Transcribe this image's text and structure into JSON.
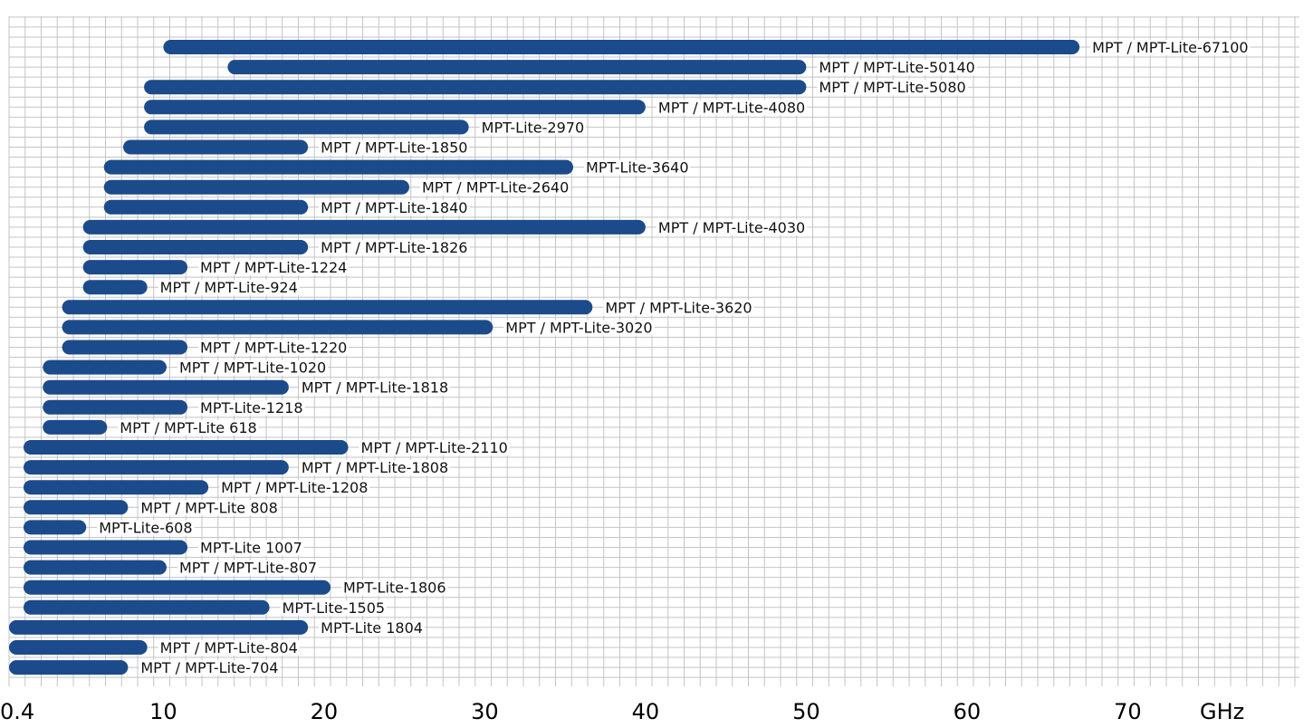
{
  "chart_data": {
    "type": "bar",
    "orientation": "horizontal",
    "unit": "GHz",
    "xlim": [
      0.4,
      80.7
    ],
    "x_ticks": [
      0.4,
      10,
      20,
      30,
      40,
      50,
      60,
      70
    ],
    "x_tick_labels": [
      "0.4",
      "10",
      "20",
      "30",
      "40",
      "50",
      "60",
      "70"
    ],
    "grid": true,
    "colors": {
      "bar": "#1c4b8c",
      "grid": "#c4c4c4",
      "label_bg": "#ffffff"
    },
    "series": [
      {
        "label": "MPT / MPT-Lite-67100",
        "start": 10,
        "end": 67
      },
      {
        "label": "MPT / MPT-Lite-50140",
        "start": 14,
        "end": 50
      },
      {
        "label": "MPT / MPT-Lite-5080",
        "start": 8.8,
        "end": 50
      },
      {
        "label": "MPT / MPT-Lite-4080",
        "start": 8.8,
        "end": 40
      },
      {
        "label": "MPT-Lite-2970",
        "start": 8.8,
        "end": 29
      },
      {
        "label": "MPT / MPT-Lite-1850",
        "start": 7.5,
        "end": 19
      },
      {
        "label": "MPT-Lite-3640",
        "start": 6.3,
        "end": 35.5
      },
      {
        "label": "MPT / MPT-Lite-2640",
        "start": 6.3,
        "end": 25.3
      },
      {
        "label": "MPT / MPT-Lite-1840",
        "start": 6.3,
        "end": 19
      },
      {
        "label": "MPT / MPT-Lite-4030",
        "start": 5,
        "end": 40
      },
      {
        "label": "MPT / MPT-Lite-1826",
        "start": 5,
        "end": 19
      },
      {
        "label": "MPT / MPT-Lite-1224",
        "start": 5,
        "end": 11.5
      },
      {
        "label": "MPT / MPT-Lite-924",
        "start": 5,
        "end": 9
      },
      {
        "label": "MPT / MPT-Lite-3620",
        "start": 3.7,
        "end": 36.7
      },
      {
        "label": "MPT / MPT-Lite-3020",
        "start": 3.7,
        "end": 30.5
      },
      {
        "label": "MPT / MPT-Lite-1220",
        "start": 3.7,
        "end": 11.5
      },
      {
        "label": "MPT / MPT-Lite-1020",
        "start": 2.5,
        "end": 10.2
      },
      {
        "label": "MPT / MPT-Lite-1818",
        "start": 2.5,
        "end": 17.8
      },
      {
        "label": "MPT-Lite-1218",
        "start": 2.5,
        "end": 11.5
      },
      {
        "label": "MPT / MPT-Lite 618",
        "start": 2.5,
        "end": 6.5
      },
      {
        "label": "MPT / MPT-Lite-2110",
        "start": 1.3,
        "end": 21.5
      },
      {
        "label": "MPT / MPT-Lite-1808",
        "start": 1.3,
        "end": 17.8
      },
      {
        "label": "MPT / MPT-Lite-1208",
        "start": 1.3,
        "end": 12.8
      },
      {
        "label": "MPT / MPT-Lite 808",
        "start": 1.3,
        "end": 7.8
      },
      {
        "label": "MPT-Lite-608",
        "start": 1.3,
        "end": 5.2
      },
      {
        "label": "MPT-Lite 1007",
        "start": 1.3,
        "end": 11.5
      },
      {
        "label": "MPT / MPT-Lite-807",
        "start": 1.3,
        "end": 10.2
      },
      {
        "label": "MPT-Lite-1806",
        "start": 1.3,
        "end": 20.4
      },
      {
        "label": "MPT-Lite-1505",
        "start": 1.3,
        "end": 16.6
      },
      {
        "label": "MPT-Lite 1804",
        "start": 0.4,
        "end": 19
      },
      {
        "label": "MPT / MPT-Lite-804",
        "start": 0.4,
        "end": 9
      },
      {
        "label": "MPT / MPT-Lite-704",
        "start": 0.4,
        "end": 7.8
      }
    ]
  }
}
